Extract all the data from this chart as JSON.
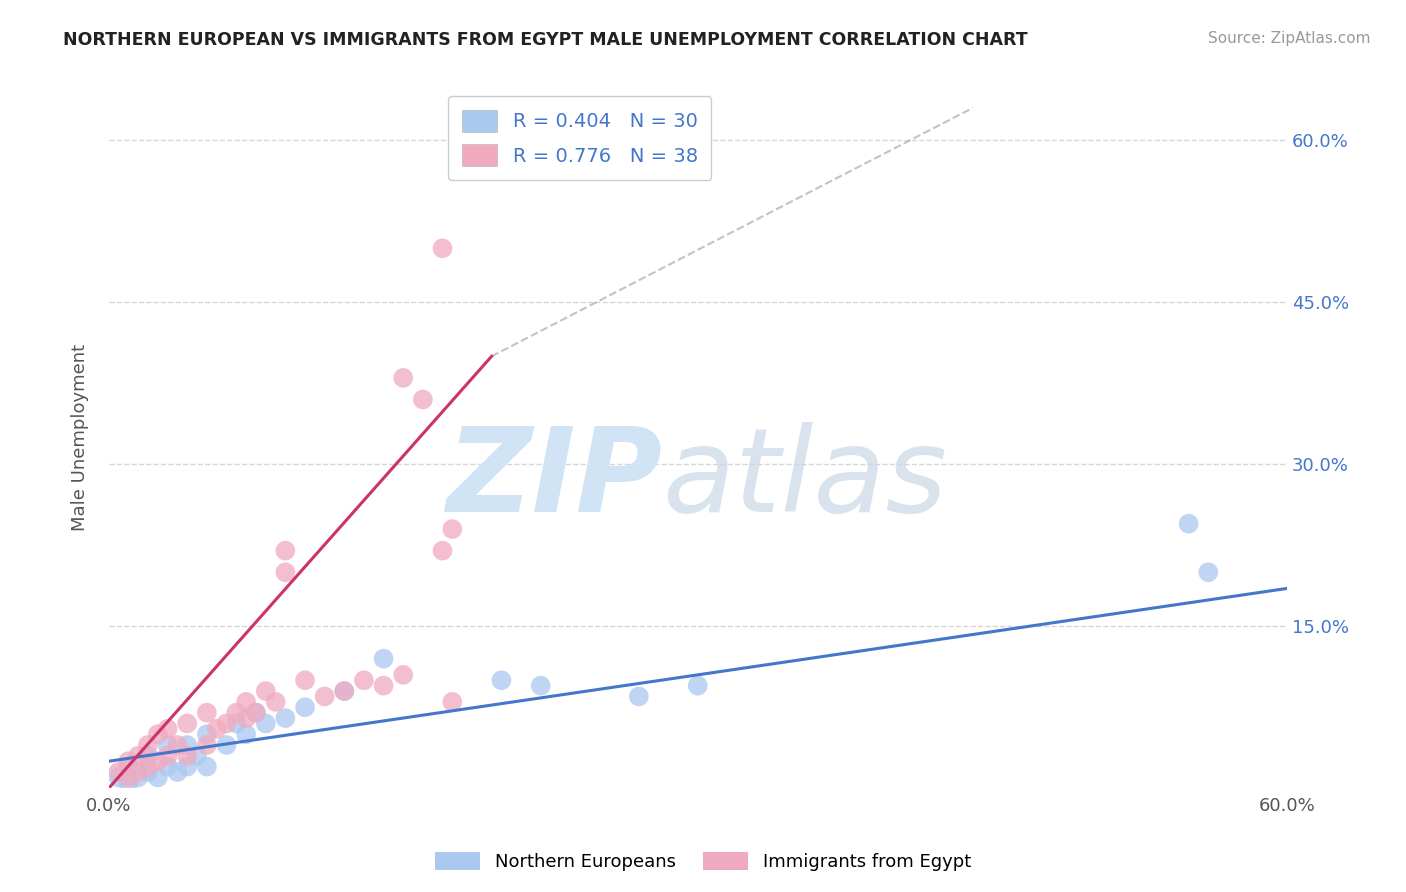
{
  "title": "NORTHERN EUROPEAN VS IMMIGRANTS FROM EGYPT MALE UNEMPLOYMENT CORRELATION CHART",
  "source": "Source: ZipAtlas.com",
  "ylabel": "Male Unemployment",
  "xlim": [
    0.0,
    0.6
  ],
  "ylim": [
    0.0,
    0.65
  ],
  "grid_color": "#cccccc",
  "background_color": "#ffffff",
  "legend_r1": "R = 0.404",
  "legend_n1": "N = 30",
  "legend_r2": "R = 0.776",
  "legend_n2": "N = 38",
  "series1_color": "#aac8f0",
  "series2_color": "#f0aac0",
  "line1_color": "#4477cc",
  "line2_color": "#cc3366",
  "series1_name": "Northern Europeans",
  "series2_name": "Immigrants from Egypt",
  "blue_scatter_x": [
    0.005,
    0.01,
    0.01,
    0.015,
    0.02,
    0.02,
    0.025,
    0.03,
    0.03,
    0.035,
    0.04,
    0.04,
    0.045,
    0.05,
    0.05,
    0.06,
    0.065,
    0.07,
    0.075,
    0.08,
    0.09,
    0.1,
    0.12,
    0.14,
    0.2,
    0.22,
    0.27,
    0.3,
    0.55,
    0.56
  ],
  "blue_scatter_y": [
    0.01,
    0.005,
    0.02,
    0.01,
    0.015,
    0.03,
    0.01,
    0.02,
    0.04,
    0.015,
    0.02,
    0.04,
    0.03,
    0.02,
    0.05,
    0.04,
    0.06,
    0.05,
    0.07,
    0.06,
    0.065,
    0.075,
    0.09,
    0.12,
    0.1,
    0.095,
    0.085,
    0.095,
    0.245,
    0.2
  ],
  "pink_scatter_x": [
    0.005,
    0.01,
    0.01,
    0.015,
    0.015,
    0.02,
    0.02,
    0.025,
    0.025,
    0.03,
    0.03,
    0.035,
    0.04,
    0.04,
    0.05,
    0.05,
    0.055,
    0.06,
    0.065,
    0.07,
    0.07,
    0.075,
    0.08,
    0.085,
    0.09,
    0.09,
    0.1,
    0.11,
    0.12,
    0.13,
    0.14,
    0.15,
    0.16,
    0.15,
    0.17,
    0.175,
    0.17,
    0.175
  ],
  "pink_scatter_y": [
    0.015,
    0.01,
    0.025,
    0.015,
    0.03,
    0.02,
    0.04,
    0.025,
    0.05,
    0.03,
    0.055,
    0.04,
    0.03,
    0.06,
    0.04,
    0.07,
    0.055,
    0.06,
    0.07,
    0.065,
    0.08,
    0.07,
    0.09,
    0.08,
    0.2,
    0.22,
    0.1,
    0.085,
    0.09,
    0.1,
    0.095,
    0.105,
    0.36,
    0.38,
    0.5,
    0.08,
    0.22,
    0.24
  ],
  "line1_x": [
    0.0,
    0.6
  ],
  "line1_y": [
    0.025,
    0.185
  ],
  "line2_x": [
    0.0,
    0.195
  ],
  "line2_y": [
    0.0,
    0.4
  ],
  "dash_line_x": [
    0.195,
    0.44
  ],
  "dash_line_y": [
    0.4,
    0.63
  ]
}
